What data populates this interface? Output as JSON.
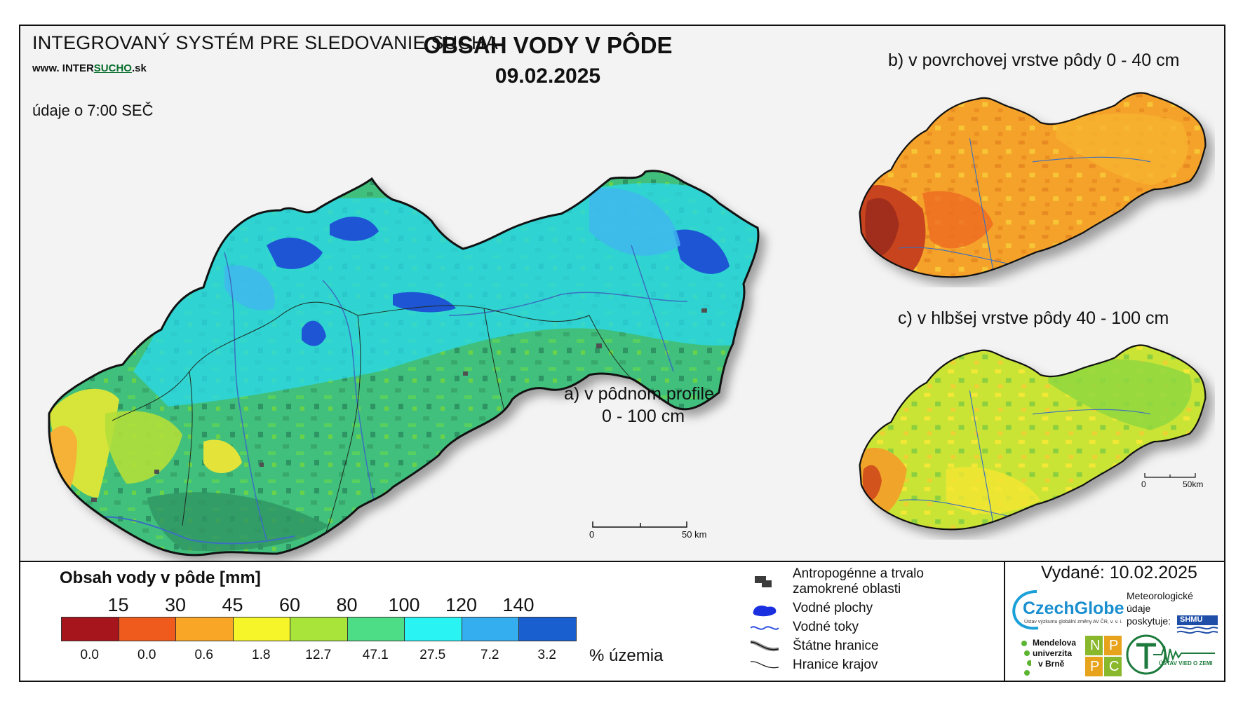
{
  "header": {
    "system_title": "INTEGROVANÝ SYSTÉM PRE SLEDOVANIE SUCHA",
    "website_prefix": "www. INTER",
    "website_highlight": "SUCHO",
    "website_suffix": ".sk",
    "time_note": "údaje o 7:00 SEČ",
    "main_title": "OBSAH VODY V PÔDE",
    "main_date": "09.02.2025"
  },
  "maps": {
    "a": {
      "label_line1": "a) v pôdnom profile",
      "label_line2": "0 - 100 cm",
      "scale_start": "0",
      "scale_end": "50 km"
    },
    "b": {
      "label": "b) v povrchovej vrstve pôdy 0 - 40 cm"
    },
    "c": {
      "label": "c) v hlbšej vrstve pôdy 40 - 100 cm",
      "scale_start": "0",
      "scale_end": "50km"
    }
  },
  "legend": {
    "title": "Obsah vody v pôde  [mm]",
    "thresholds": [
      "15",
      "30",
      "45",
      "60",
      "80",
      "100",
      "120",
      "140"
    ],
    "colors": [
      "#a5151b",
      "#ef5b1c",
      "#f9a526",
      "#f5f52a",
      "#a8e43a",
      "#4cdd86",
      "#2af3f3",
      "#35aef0",
      "#1a5fd0"
    ],
    "percentages": [
      "0.0",
      "0.0",
      "0.6",
      "1.8",
      "12.7",
      "47.1",
      "27.5",
      "7.2",
      "3.2"
    ],
    "percent_label": "% územia"
  },
  "map_key": {
    "items": [
      {
        "icon": "urban-area-icon",
        "label_line1": "Antropogénne a trvalo",
        "label_line2": "zamokrené oblasti"
      },
      {
        "icon": "water-body-icon",
        "label_line1": "Vodné plochy"
      },
      {
        "icon": "river-icon",
        "label_line1": "Vodné toky"
      },
      {
        "icon": "state-border-icon",
        "label_line1": "Štátne hranice"
      },
      {
        "icon": "region-border-icon",
        "label_line1": "Hranice krajov"
      }
    ]
  },
  "credits": {
    "issued": "Vydané: 10.02.2025",
    "czechglobe": "CzechGlobe",
    "czechglobe_sub": "Ústav výzkumu globální změny AV ČR, v. v. i.",
    "met_line1": "Meteorologické",
    "met_line2": "údaje",
    "met_line3": "poskytuje:",
    "shmu": "SHMÚ",
    "mendel_line1": "Mendelova",
    "mendel_line2": "univerzita",
    "mendel_line3": "v Brně",
    "nppc": [
      "N",
      "P",
      "P",
      "C"
    ],
    "earth_institute": "ÚSTAV VIED O ZEMI"
  }
}
